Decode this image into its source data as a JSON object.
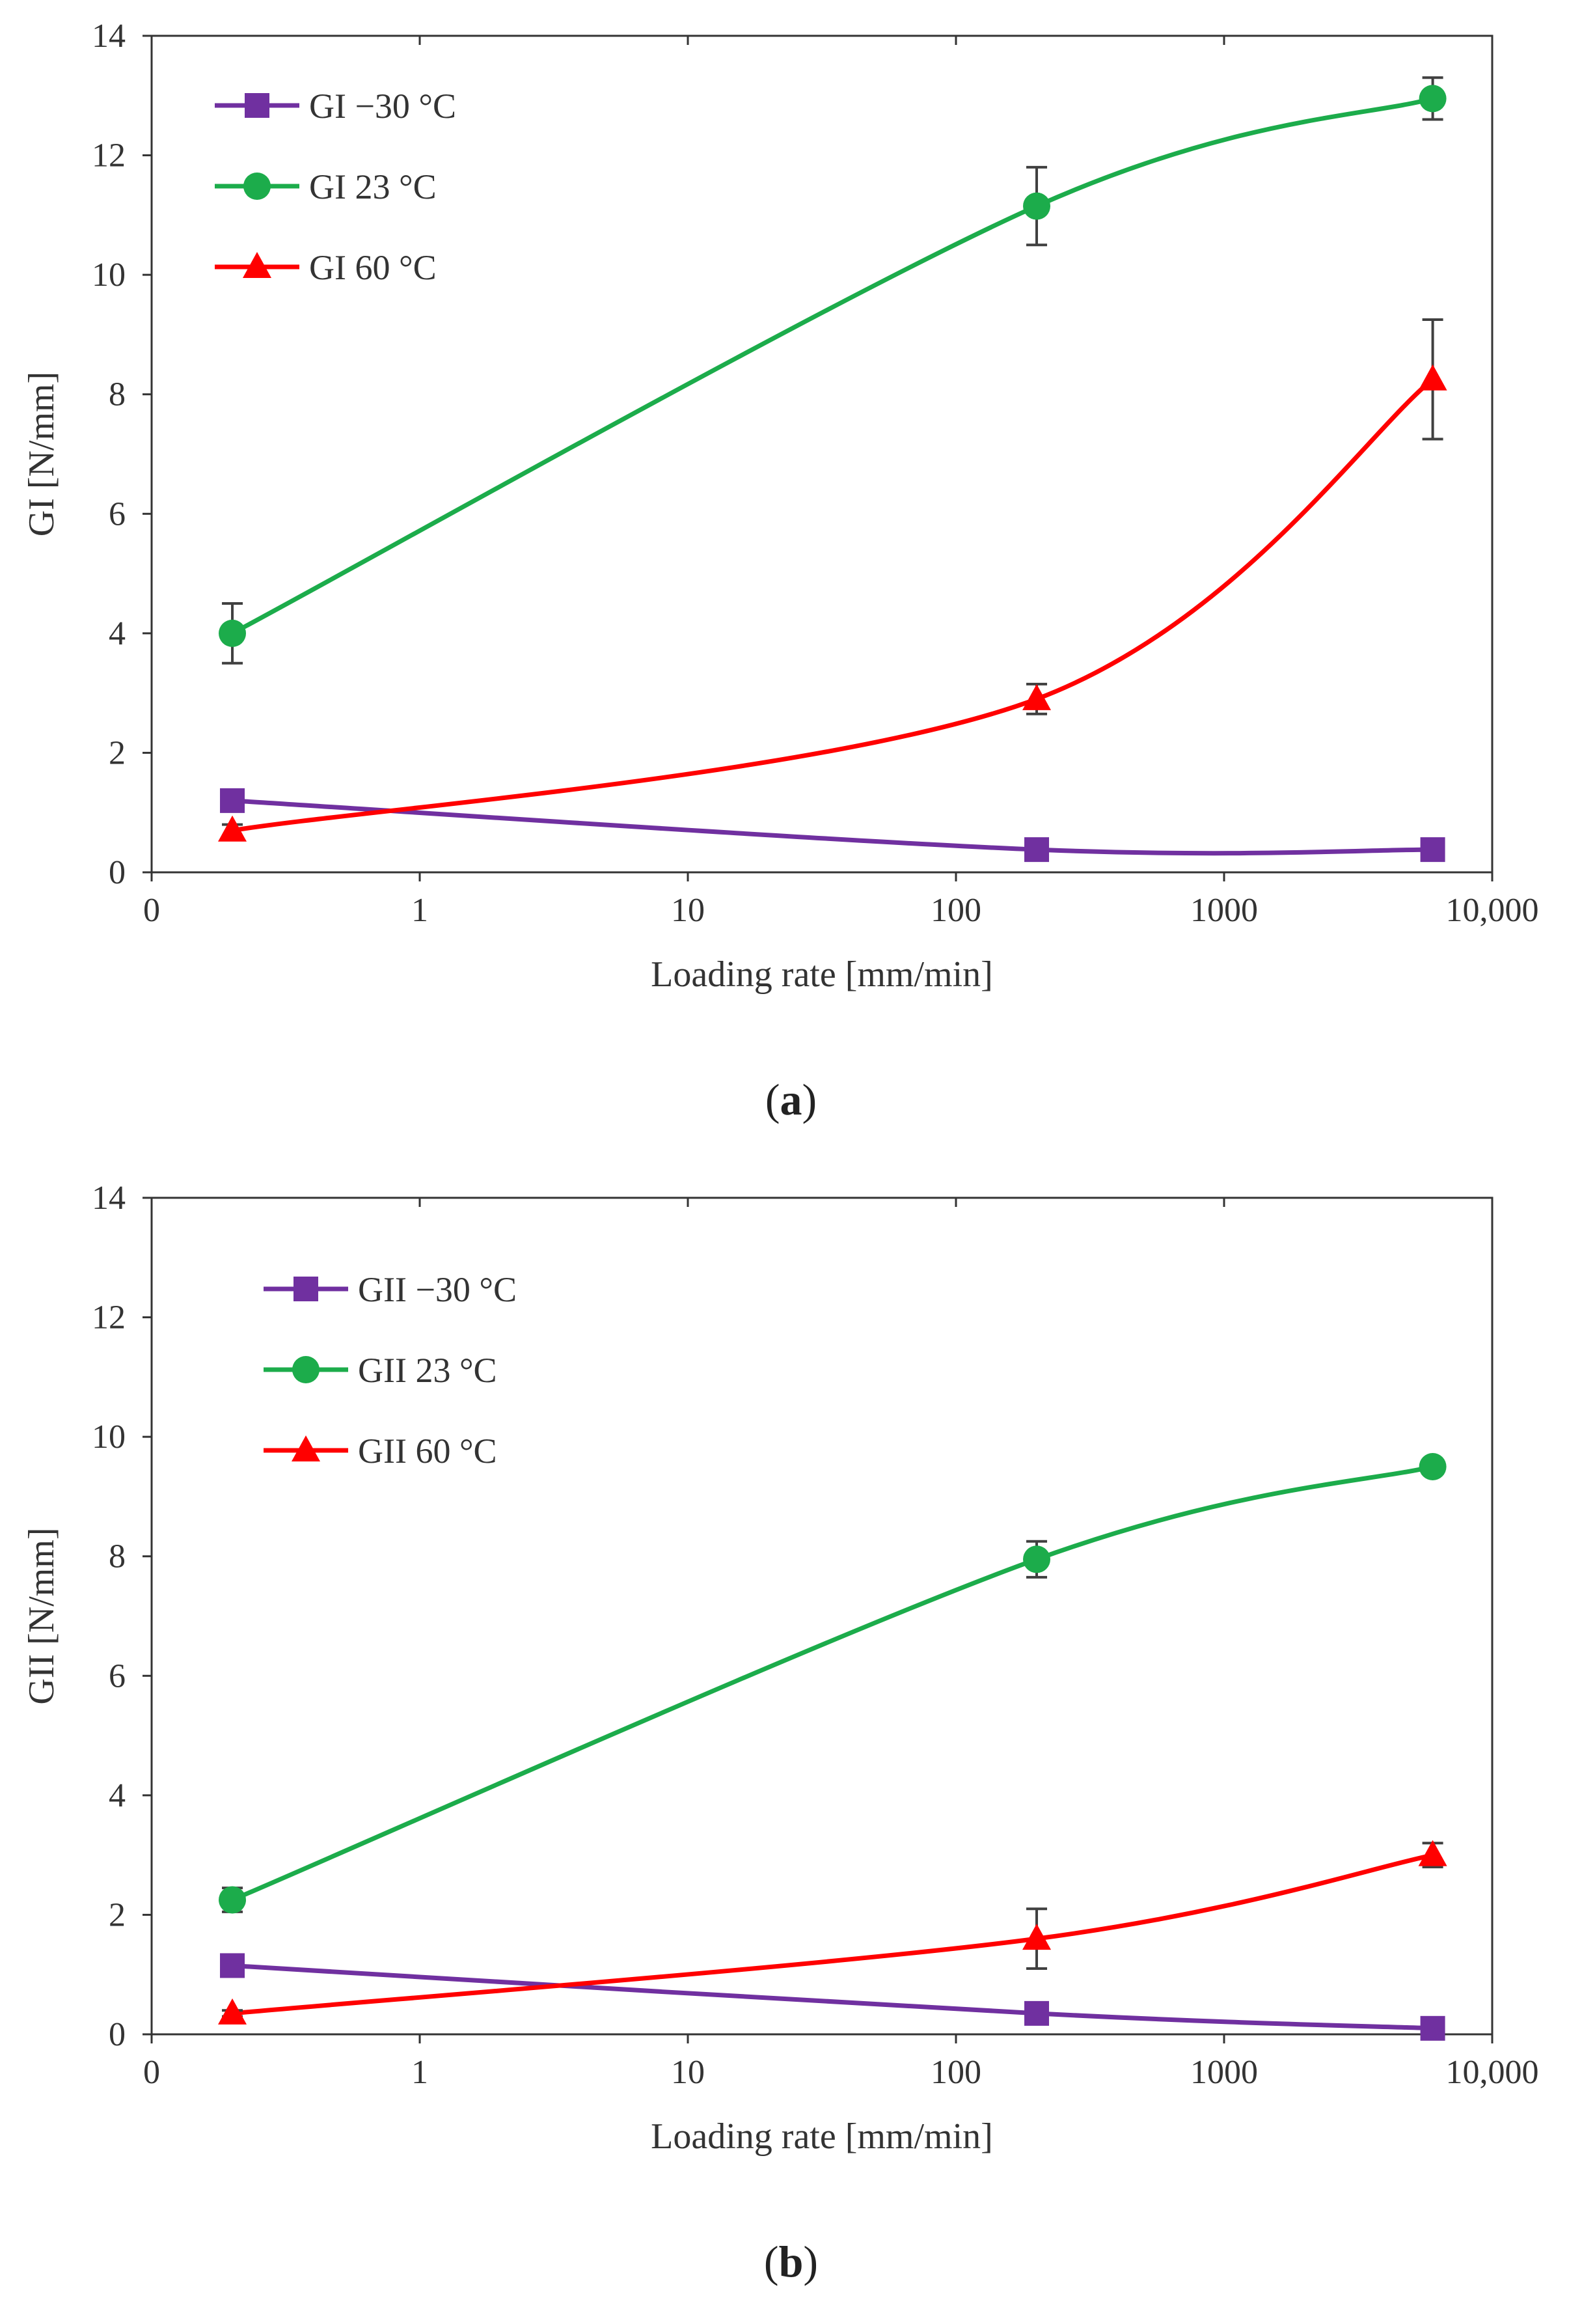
{
  "figure_captions": [
    {
      "open": "(",
      "letter": "a",
      "close": ")"
    },
    {
      "open": "(",
      "letter": "b",
      "close": ")"
    }
  ],
  "colors": {
    "minus30": "#7030a0",
    "plus23": "#1cac4b",
    "plus60": "#ff0000",
    "errorbar": "#404040",
    "axis": "#333333"
  },
  "chart_data": [
    {
      "type": "line",
      "title": "",
      "panel": "a",
      "xlabel": "Loading rate [mm/min]",
      "ylabel": "GI [N/mm]",
      "xscale": "log",
      "x_tick_values": [
        0.1,
        1,
        10,
        100,
        1000,
        10000
      ],
      "x_tick_labels": [
        "0",
        "1",
        "10",
        "100",
        "1000",
        "10,000"
      ],
      "xlim": [
        0.1,
        10000
      ],
      "ylim": [
        0,
        14
      ],
      "y_ticks": [
        0,
        2,
        4,
        6,
        8,
        10,
        12,
        14
      ],
      "legend_position": "top-left",
      "series": [
        {
          "name": "GI −30 °C",
          "color_key": "minus30",
          "marker": "square",
          "x": [
            0.2,
            200,
            6000
          ],
          "values": [
            1.2,
            0.38,
            0.38
          ],
          "errors": [
            0,
            0,
            0
          ]
        },
        {
          "name": "GI 23 °C",
          "color_key": "plus23",
          "marker": "circle",
          "x": [
            0.2,
            200,
            6000
          ],
          "values": [
            4.0,
            11.15,
            12.95
          ],
          "errors": [
            0.5,
            0.65,
            0.35
          ]
        },
        {
          "name": "GI 60 °C",
          "color_key": "plus60",
          "marker": "triangle",
          "x": [
            0.2,
            200,
            6000
          ],
          "values": [
            0.7,
            2.9,
            8.25
          ],
          "errors": [
            0.1,
            0.25,
            1.0
          ]
        }
      ]
    },
    {
      "type": "line",
      "title": "",
      "panel": "b",
      "xlabel": "Loading rate [mm/min]",
      "ylabel": "GII [N/mm]",
      "xscale": "log",
      "x_tick_values": [
        0.1,
        1,
        10,
        100,
        1000,
        10000
      ],
      "x_tick_labels": [
        "0",
        "1",
        "10",
        "100",
        "1000",
        "10,000"
      ],
      "xlim": [
        0.1,
        10000
      ],
      "ylim": [
        0,
        14
      ],
      "y_ticks": [
        0,
        2,
        4,
        6,
        8,
        10,
        12,
        14
      ],
      "legend_position": "top-left",
      "series": [
        {
          "name": "GII −30 °C",
          "color_key": "minus30",
          "marker": "square",
          "x": [
            0.2,
            200,
            6000
          ],
          "values": [
            1.15,
            0.35,
            0.1
          ],
          "errors": [
            0,
            0,
            0
          ]
        },
        {
          "name": "GII 23 °C",
          "color_key": "plus23",
          "marker": "circle",
          "x": [
            0.2,
            200,
            6000
          ],
          "values": [
            2.25,
            7.95,
            9.5
          ],
          "errors": [
            0.2,
            0.3,
            0.05
          ]
        },
        {
          "name": "GII 60 °C",
          "color_key": "plus60",
          "marker": "triangle",
          "x": [
            0.2,
            200,
            6000
          ],
          "values": [
            0.35,
            1.6,
            3.0
          ],
          "errors": [
            0.05,
            0.5,
            0.2
          ]
        }
      ]
    }
  ]
}
